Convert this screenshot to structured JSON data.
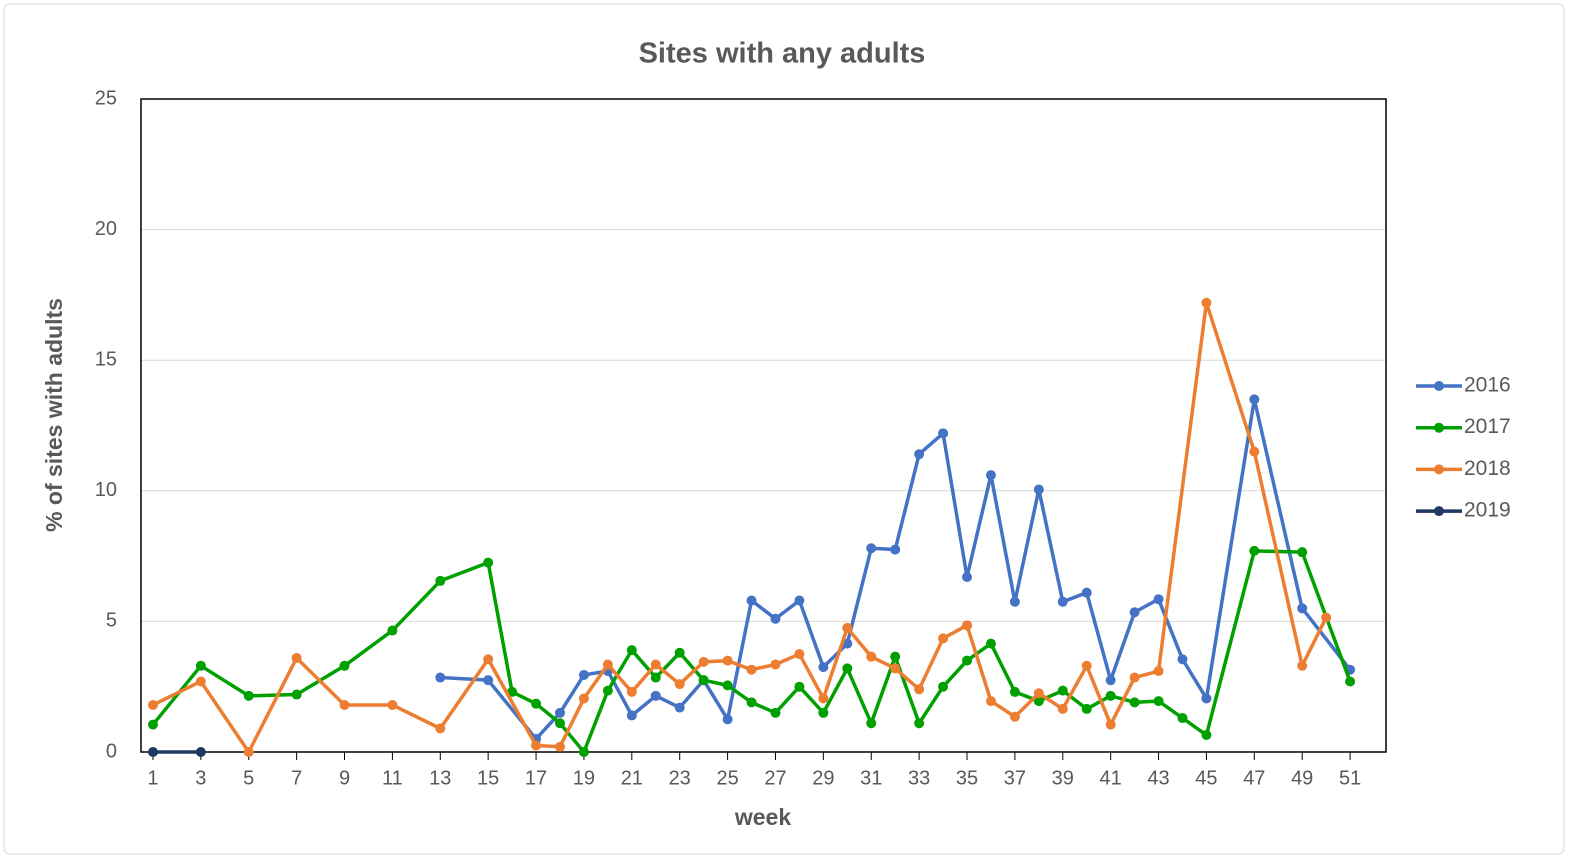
{
  "chart_data": {
    "type": "line",
    "title": "Sites with any adults",
    "xlabel": "week",
    "ylabel": "% of sites with adults",
    "xlim": [
      0.5,
      52.5
    ],
    "xticks": [
      1,
      3,
      5,
      7,
      9,
      11,
      13,
      15,
      17,
      19,
      21,
      23,
      25,
      27,
      29,
      31,
      33,
      35,
      37,
      39,
      41,
      43,
      45,
      47,
      49,
      51
    ],
    "ylim": [
      0,
      25
    ],
    "yticks": [
      0,
      5,
      10,
      15,
      20,
      25
    ],
    "grid": true,
    "legend": "right",
    "series": [
      {
        "name": "2016",
        "color": "#4472c4",
        "x": [
          13,
          15,
          17,
          18,
          19,
          20,
          21,
          22,
          23,
          24,
          25,
          26,
          27,
          28,
          29,
          30,
          31,
          32,
          33,
          34,
          35,
          36,
          37,
          38,
          39,
          40,
          41,
          42,
          43,
          44,
          45,
          47,
          49,
          51
        ],
        "values": [
          2.85,
          2.75,
          0.5,
          1.5,
          2.95,
          3.1,
          1.4,
          2.15,
          1.7,
          2.75,
          1.25,
          5.8,
          5.1,
          5.8,
          3.25,
          4.15,
          7.8,
          7.75,
          11.4,
          12.2,
          6.7,
          10.6,
          5.75,
          10.05,
          5.75,
          6.1,
          2.75,
          5.35,
          5.85,
          3.55,
          2.05,
          13.5,
          5.5,
          3.15
        ]
      },
      {
        "name": "2017",
        "color": "#00a000",
        "x": [
          1,
          3,
          5,
          7,
          9,
          11,
          13,
          15,
          16,
          17,
          18,
          19,
          20,
          21,
          22,
          23,
          24,
          25,
          26,
          27,
          28,
          29,
          30,
          31,
          32,
          33,
          34,
          35,
          36,
          37,
          38,
          39,
          40,
          41,
          42,
          43,
          44,
          45,
          47,
          49,
          51
        ],
        "values": [
          1.05,
          3.3,
          2.15,
          2.2,
          3.3,
          4.65,
          6.55,
          7.25,
          2.3,
          1.85,
          1.1,
          0,
          2.35,
          3.9,
          2.85,
          3.8,
          2.75,
          2.55,
          1.9,
          1.5,
          2.5,
          1.5,
          3.2,
          1.1,
          3.65,
          1.1,
          2.5,
          3.5,
          4.15,
          2.3,
          1.95,
          2.35,
          1.65,
          2.15,
          1.9,
          1.95,
          1.3,
          0.65,
          7.7,
          7.65,
          2.7
        ]
      },
      {
        "name": "2018",
        "color": "#ed7d31",
        "x": [
          1,
          3,
          5,
          7,
          9,
          11,
          13,
          15,
          17,
          18,
          19,
          20,
          21,
          22,
          23,
          24,
          25,
          26,
          27,
          28,
          29,
          30,
          31,
          32,
          33,
          34,
          35,
          36,
          37,
          38,
          39,
          40,
          41,
          42,
          43,
          45,
          47,
          49,
          50
        ],
        "values": [
          1.8,
          2.7,
          0,
          3.6,
          1.8,
          1.8,
          0.9,
          3.55,
          0.25,
          0.2,
          2.05,
          3.35,
          2.3,
          3.35,
          2.6,
          3.45,
          3.5,
          3.15,
          3.35,
          3.75,
          2.05,
          4.75,
          3.65,
          3.2,
          2.4,
          4.35,
          4.85,
          1.95,
          1.35,
          2.25,
          1.65,
          3.3,
          1.05,
          2.85,
          3.1,
          17.2,
          11.5,
          3.3,
          5.15
        ]
      },
      {
        "name": "2019",
        "color": "#1f3864",
        "x": [
          1,
          3
        ],
        "values": [
          0,
          0
        ]
      }
    ]
  }
}
